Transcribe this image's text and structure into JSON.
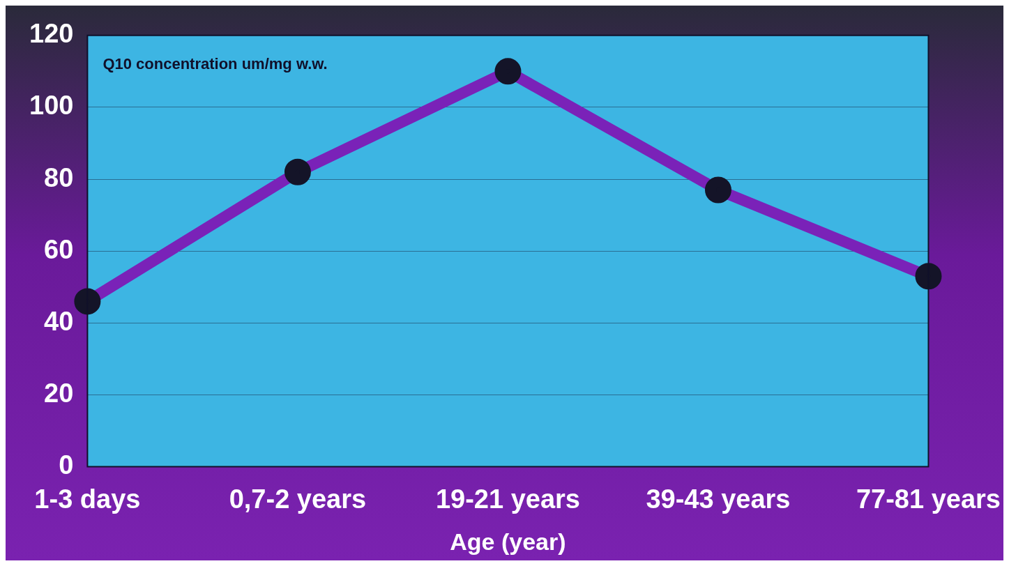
{
  "chart_data": {
    "type": "line",
    "title": "Q10 concentration um/mg w.w.",
    "xlabel": "Age (year)",
    "categories": [
      "1-3 days",
      "0,7-2 years",
      "19-21 years",
      "39-43 years",
      "77-81 years"
    ],
    "series": [
      {
        "color": "#7a22b8",
        "values": [
          46,
          82,
          110,
          77,
          53
        ]
      }
    ],
    "ylim": [
      0,
      120
    ],
    "yticks": [
      0,
      20,
      40,
      60,
      80,
      100,
      120
    ],
    "grid": "y",
    "legend": false,
    "marker": "circle",
    "line_style": "solid"
  }
}
